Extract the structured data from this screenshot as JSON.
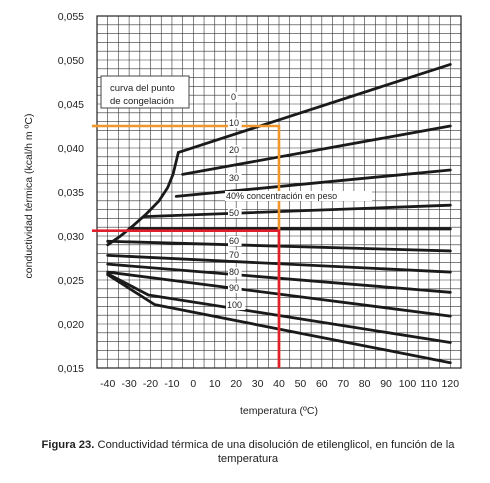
{
  "chart_data": {
    "type": "line",
    "xlabel": "temperatura (ºC)",
    "ylabel": "conductividad térmica (kcal/h m ºC)",
    "xlim": [
      -45,
      125
    ],
    "ylim": [
      0.015,
      0.055
    ],
    "xticks": [
      -40,
      -30,
      -20,
      -10,
      0,
      10,
      20,
      30,
      40,
      50,
      60,
      70,
      80,
      90,
      100,
      110,
      120
    ],
    "xtick_labels": [
      "-40",
      "-30",
      "-20",
      "-10",
      "0",
      "10",
      "20",
      "30",
      "40",
      "50",
      "60",
      "70",
      "80",
      "90",
      "100",
      "110",
      "120"
    ],
    "yticks": [
      0.015,
      0.02,
      0.025,
      0.03,
      0.035,
      0.04,
      0.045,
      0.05,
      0.055
    ],
    "ytick_labels": [
      "0,015",
      "0,020",
      "0,025",
      "0,030",
      "0,035",
      "0,040",
      "0,045",
      "0,050",
      "0,055"
    ],
    "grid": true,
    "series": [
      {
        "label": "0",
        "x": [
          -7,
          120
        ],
        "y": [
          0.0395,
          0.0495
        ]
      },
      {
        "label": "10",
        "x": [
          -5,
          120
        ],
        "y": [
          0.037,
          0.0425
        ]
      },
      {
        "label": "20",
        "x": [
          -8,
          120
        ],
        "y": [
          0.0345,
          0.0375
        ]
      },
      {
        "label": "30",
        "x": [
          -23,
          120
        ],
        "y": [
          0.0322,
          0.0335
        ]
      },
      {
        "label": "40% concentración en peso",
        "x": [
          -30,
          120
        ],
        "y": [
          0.0308,
          0.0308
        ]
      },
      {
        "label": "50",
        "x": [
          -40,
          120
        ],
        "y": [
          0.0294,
          0.0283
        ]
      },
      {
        "label": "60",
        "x": [
          -40,
          120
        ],
        "y": [
          0.0278,
          0.0259
        ]
      },
      {
        "label": "70",
        "x": [
          -40,
          120
        ],
        "y": [
          0.0268,
          0.0236
        ]
      },
      {
        "label": "80",
        "x": [
          -40,
          120
        ],
        "y": [
          0.0259,
          0.0209
        ]
      },
      {
        "label": "90",
        "x": [
          -40,
          -21,
          120
        ],
        "y": [
          0.0257,
          0.0233,
          0.0179
        ]
      },
      {
        "label": "100",
        "x": [
          -40,
          -18,
          120
        ],
        "y": [
          0.0256,
          0.0222,
          0.0156
        ]
      }
    ],
    "freezing_curve": {
      "label": "curva del punto de congelación",
      "x": [
        -40,
        -34,
        -28,
        -22,
        -16,
        -12,
        -9.5,
        -8,
        -7
      ],
      "y": [
        0.029,
        0.03,
        0.0312,
        0.0325,
        0.034,
        0.0355,
        0.037,
        0.0385,
        0.0395
      ]
    },
    "reference_lines": [
      {
        "color": "#f0962a",
        "x": 40,
        "y": 0.0425
      },
      {
        "color": "#e01f2c",
        "x": 40,
        "y": 0.0306
      }
    ]
  },
  "caption": {
    "bold": "Figura 23.",
    "text": " Conductividad térmica de una disolución de etilenglicol, en función de la temperatura"
  }
}
